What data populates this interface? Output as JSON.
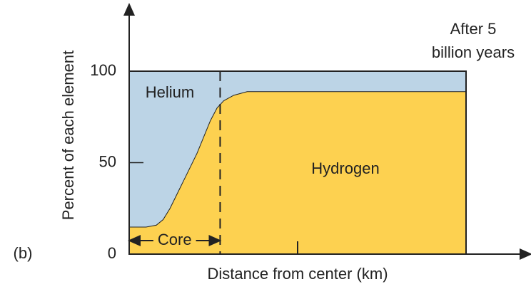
{
  "chart_data": {
    "type": "area",
    "stacked": true,
    "title_lines": [
      "After 5",
      "billion years"
    ],
    "panel_label": "(b)",
    "y_label": "Percent of each element",
    "x_label": "Distance from center (km)",
    "x": [
      0,
      5,
      8,
      10,
      12,
      16,
      20,
      24,
      26,
      28,
      31,
      35,
      100
    ],
    "series": [
      {
        "name": "Hydrogen",
        "color": "#fdd150",
        "values": [
          15,
          15,
          16,
          19,
          25,
          40,
          55,
          73,
          80,
          84,
          87,
          89,
          89
        ]
      },
      {
        "name": "Helium",
        "color": "#bcd4e6",
        "values": [
          85,
          85,
          84,
          81,
          75,
          60,
          45,
          27,
          20,
          16,
          13,
          11,
          11
        ]
      }
    ],
    "core_label": "Core",
    "core_boundary": 27,
    "xlim": [
      0,
      100
    ],
    "xticks": [
      50
    ],
    "ylim": [
      0,
      100
    ],
    "yticks": [
      0,
      50,
      100
    ]
  }
}
